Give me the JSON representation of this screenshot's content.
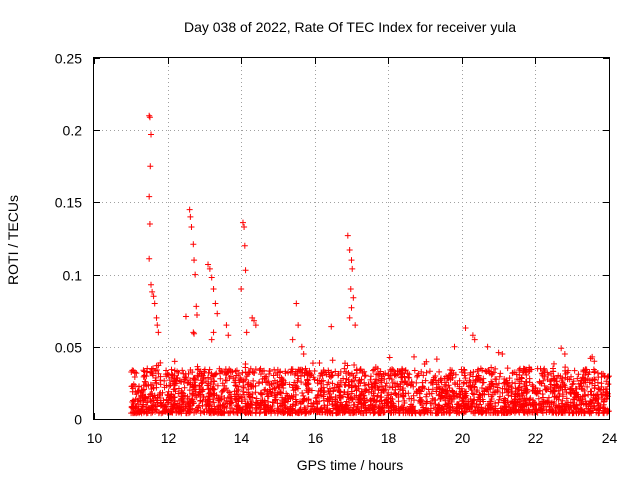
{
  "chart_data": {
    "type": "scatter",
    "title": "Day 038 of 2022, Rate Of TEC Index for receiver yula",
    "xlabel": "GPS time / hours",
    "ylabel": "ROTI / TECUs",
    "xlim": [
      10,
      24
    ],
    "ylim": [
      0,
      0.25
    ],
    "xticks": [
      10,
      12,
      14,
      16,
      18,
      20,
      22,
      24
    ],
    "xtick_labels": [
      "10",
      "12",
      "14",
      "16",
      "18",
      "20",
      "22",
      "24"
    ],
    "yticks": [
      0,
      0.05,
      0.1,
      0.15,
      0.2,
      0.25
    ],
    "ytick_labels": [
      "0",
      "0.05",
      "0.1",
      "0.15",
      "0.2",
      "0.25"
    ],
    "grid": true,
    "marker": "+",
    "color": "#ff0000",
    "series": [
      {
        "name": "ROTI",
        "note": "dense background band 11.0-24.0 h, ROTI mostly 0.005-0.035 TECU/s",
        "band": {
          "x_start": 11.0,
          "x_end": 24.0,
          "y_low": 0.004,
          "y_high": 0.035
        },
        "x": [
          11.5,
          11.52,
          11.55,
          11.53,
          11.5,
          11.52,
          11.5,
          11.55,
          11.58,
          11.62,
          11.65,
          11.7,
          11.72,
          11.75,
          12.6,
          12.62,
          12.65,
          12.7,
          12.72,
          12.75,
          12.78,
          12.8,
          12.7,
          12.72,
          12.5,
          13.1,
          13.15,
          13.2,
          13.25,
          13.3,
          13.35,
          13.25,
          13.2,
          13.6,
          13.65,
          14.05,
          14.08,
          14.1,
          14.12,
          14.0,
          14.15,
          14.3,
          14.35,
          14.4,
          15.4,
          15.5,
          15.55,
          15.65,
          15.7,
          16.45,
          16.9,
          16.95,
          17.0,
          17.02,
          16.98,
          17.05,
          17.0,
          16.95,
          17.1,
          18.7,
          19.8,
          20.1,
          20.3,
          20.35,
          20.7,
          21.0,
          21.1,
          22.7,
          22.8,
          23.5,
          23.6
        ],
        "y": [
          0.21,
          0.209,
          0.197,
          0.175,
          0.154,
          0.135,
          0.111,
          0.093,
          0.088,
          0.085,
          0.08,
          0.07,
          0.065,
          0.06,
          0.145,
          0.14,
          0.133,
          0.121,
          0.11,
          0.1,
          0.078,
          0.072,
          0.06,
          0.059,
          0.071,
          0.107,
          0.104,
          0.098,
          0.09,
          0.08,
          0.073,
          0.06,
          0.055,
          0.065,
          0.058,
          0.136,
          0.133,
          0.12,
          0.103,
          0.09,
          0.06,
          0.07,
          0.068,
          0.065,
          0.055,
          0.08,
          0.065,
          0.05,
          0.045,
          0.064,
          0.127,
          0.117,
          0.11,
          0.104,
          0.09,
          0.084,
          0.077,
          0.07,
          0.065,
          0.043,
          0.05,
          0.063,
          0.058,
          0.055,
          0.05,
          0.046,
          0.045,
          0.049,
          0.045,
          0.042,
          0.04
        ]
      }
    ]
  }
}
